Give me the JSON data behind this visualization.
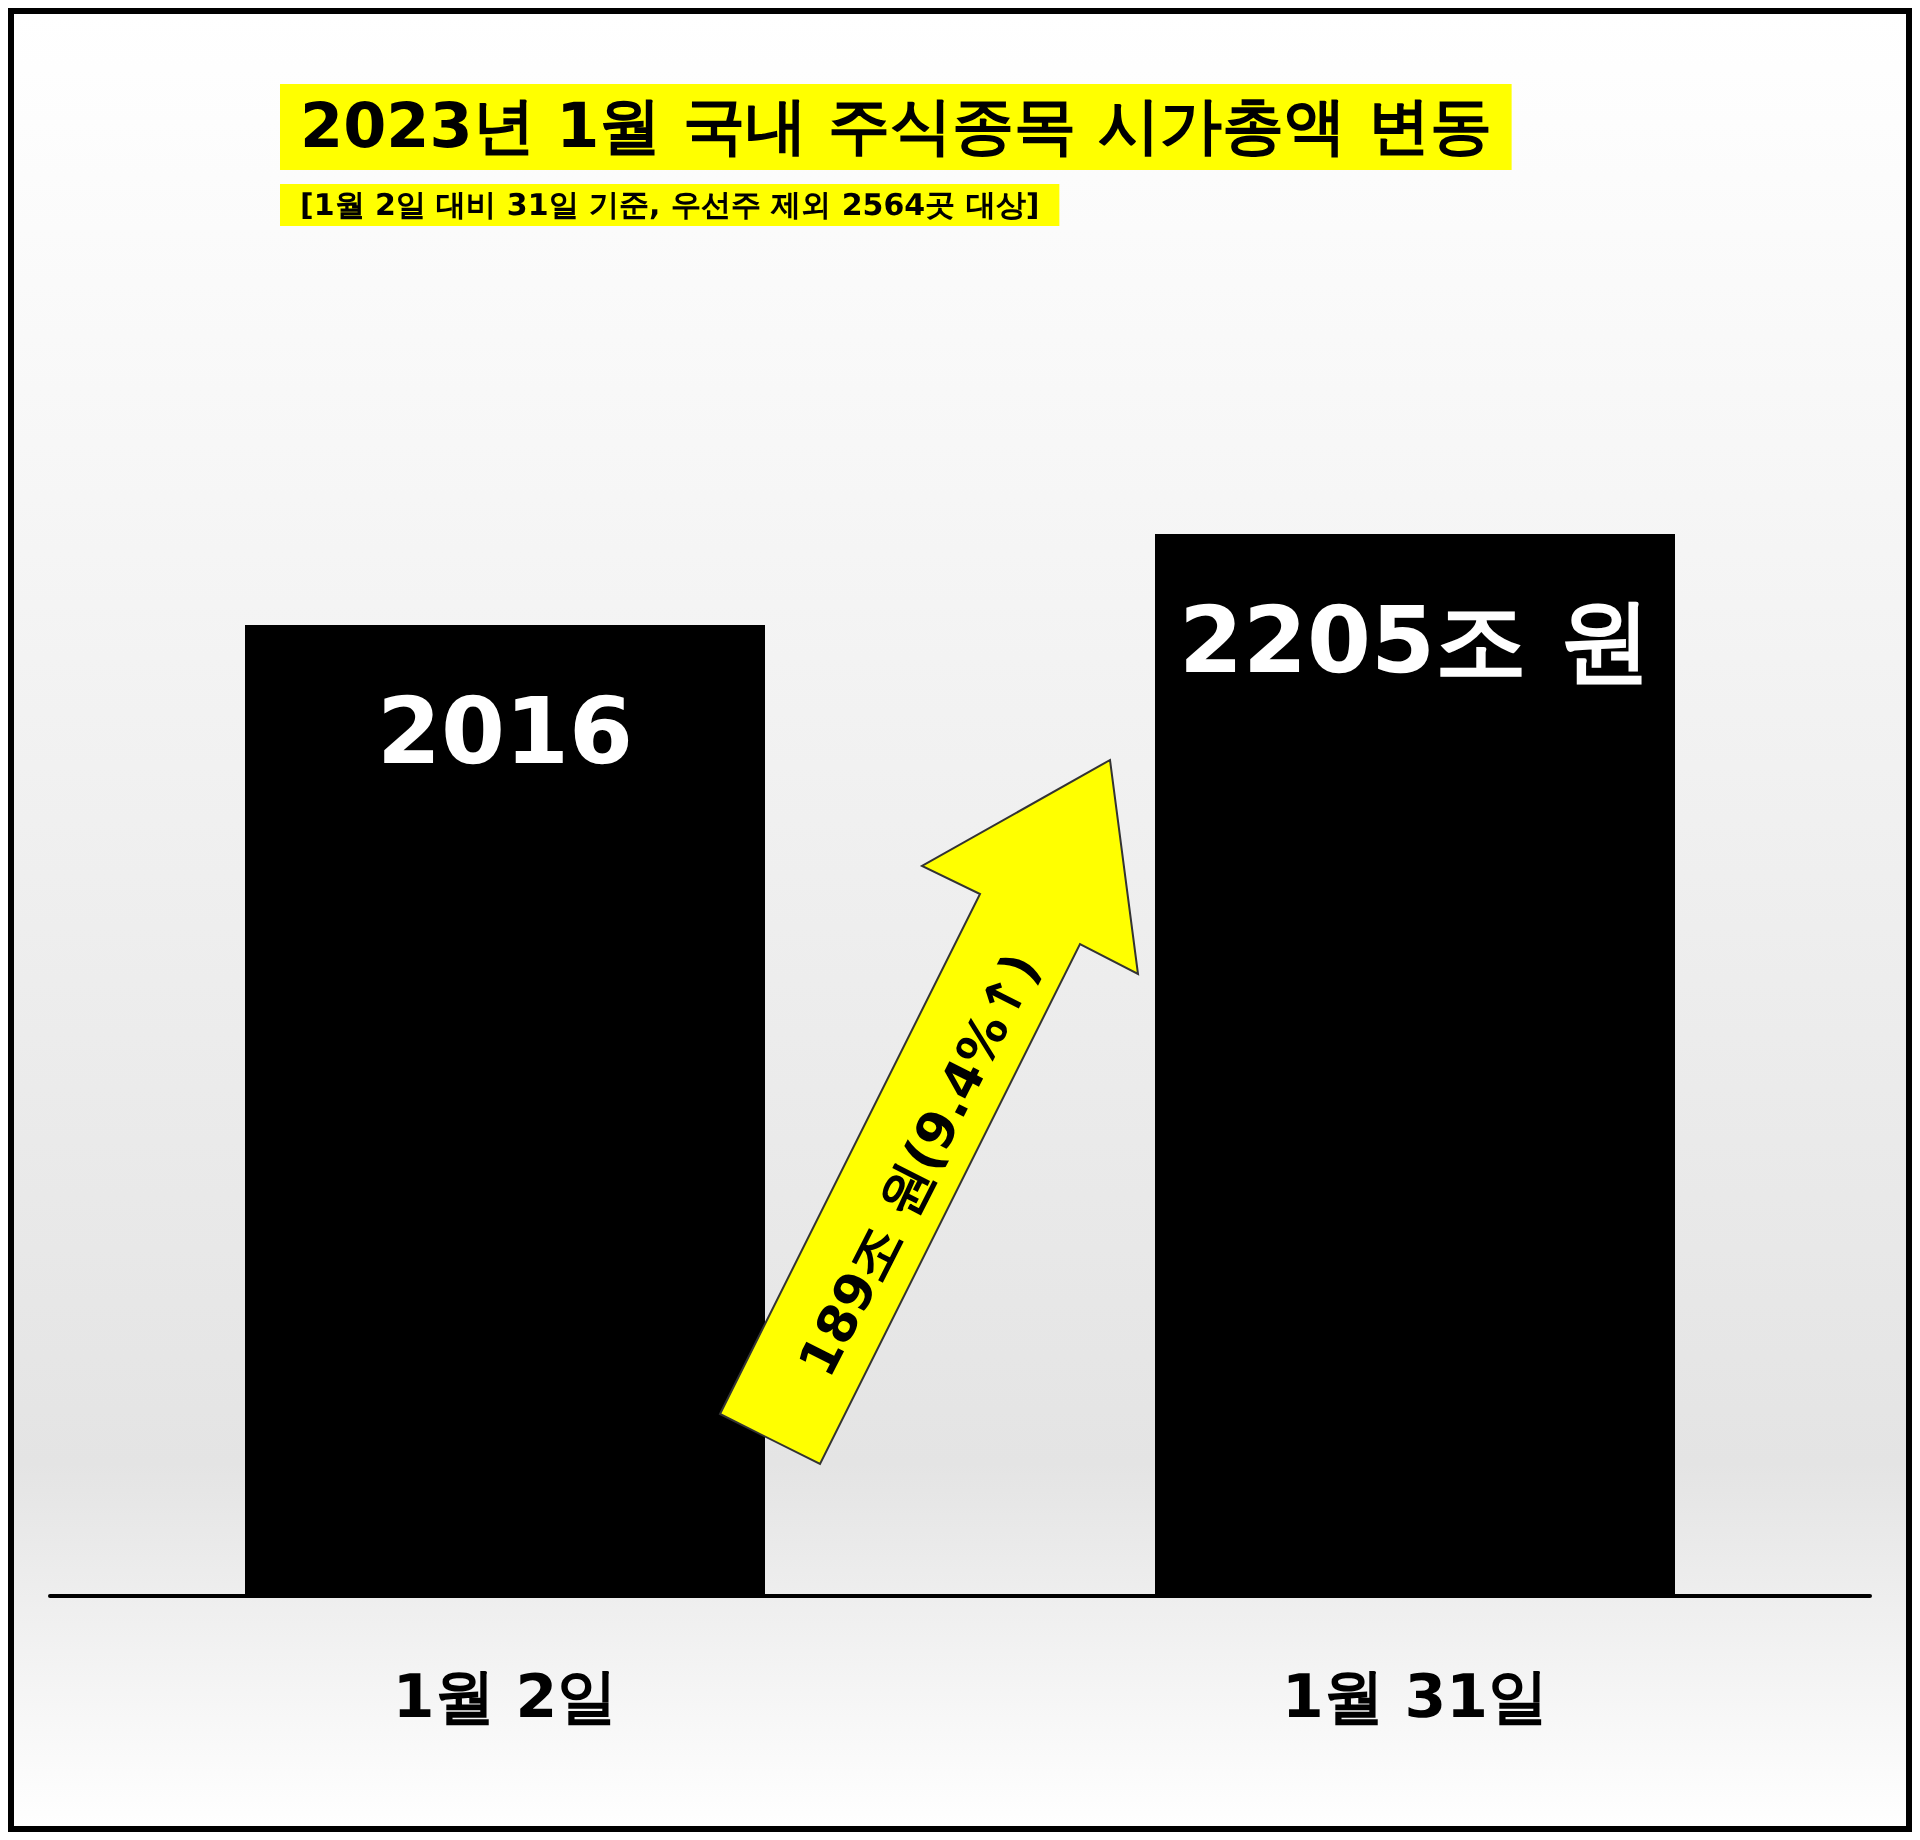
{
  "chart_data": {
    "type": "bar",
    "title": "2023년 1월 국내 주식종목 시가총액 변동",
    "subtitle": "[1월 2일 대비 31일 기준, 우선주 제외 2564곳 대상]",
    "categories": [
      "1월 2일",
      "1월 31일"
    ],
    "values": [
      2016,
      2205
    ],
    "color": "#000000",
    "value_labels": [
      "2016",
      "2205조 원"
    ],
    "annotations": [
      "189조 원(9.4%↑)"
    ],
    "tick_labels": "x"
  }
}
